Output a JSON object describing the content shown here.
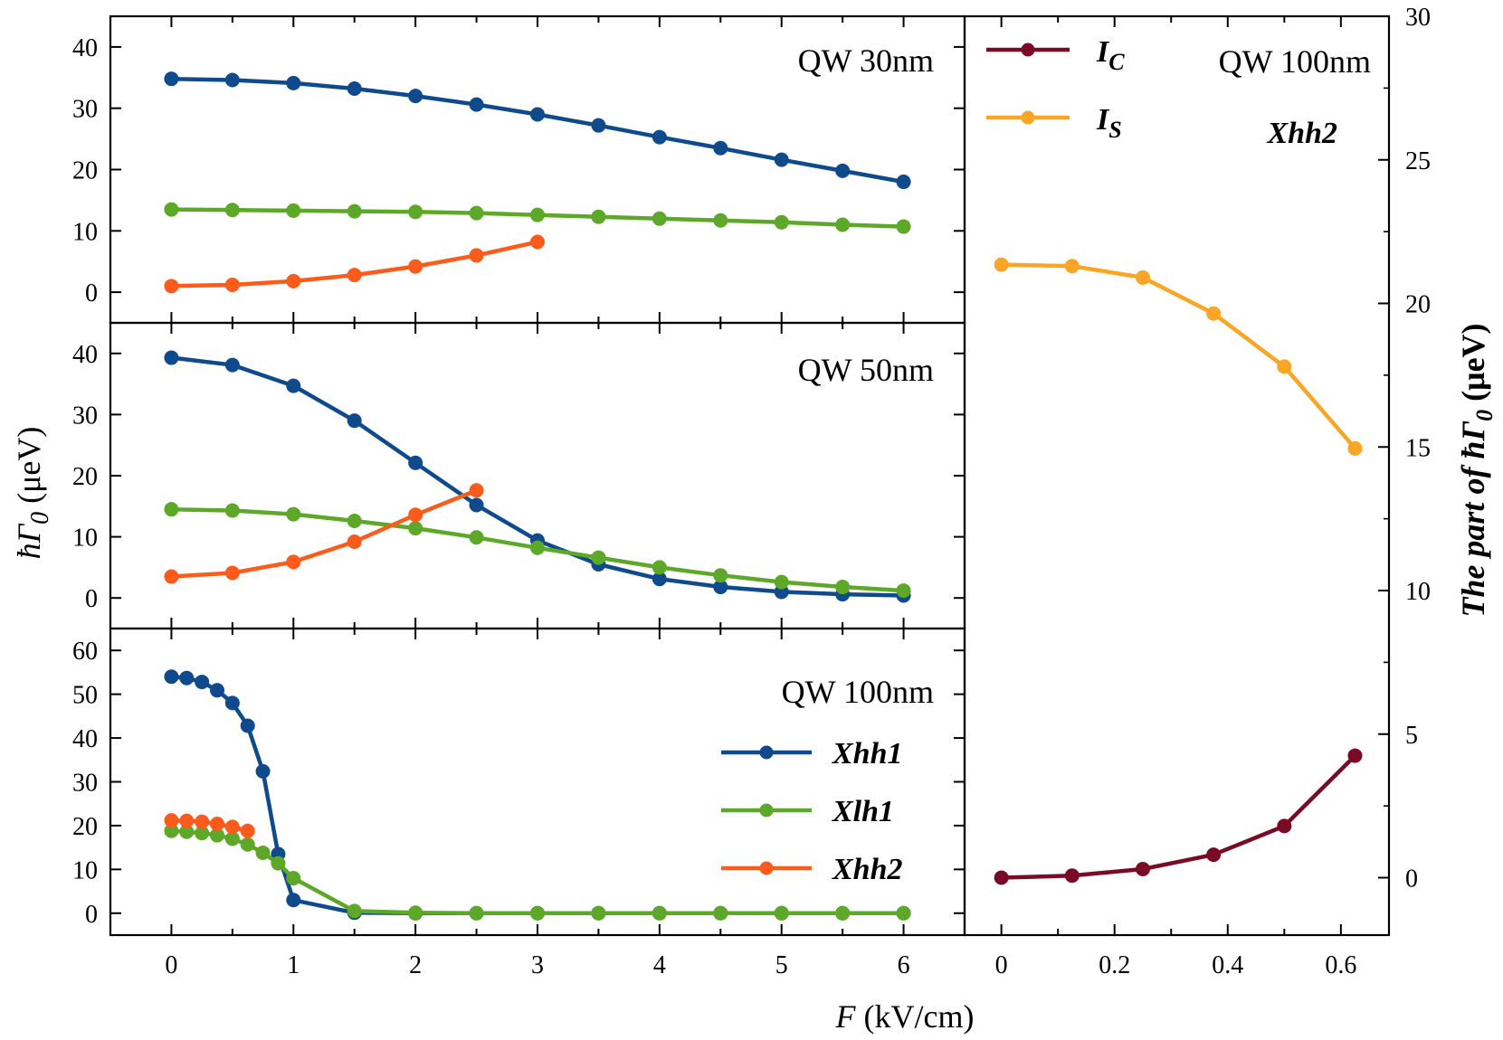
{
  "colors": {
    "Xhh1": "#0e4a8c",
    "Xlh1": "#5ea829",
    "Xhh2": "#fc5b1c",
    "I_C": "#7a0b27",
    "I_S": "#f9a526"
  },
  "xlabel": {
    "symbol": "F",
    "units": "(kV/cm)"
  },
  "ylabel_left": {
    "main": "ħΓ",
    "sub": "0",
    "units": "(μeV)"
  },
  "ylabel_right": {
    "prefix": "The part of ħΓ",
    "sub": "0",
    "units": "(μeV)"
  },
  "legend_left": [
    "Xhh1",
    "Xlh1",
    "Xhh2"
  ],
  "legend_right": [
    {
      "key": "I_C",
      "main": "I",
      "sub": "C"
    },
    {
      "key": "I_S",
      "main": "I",
      "sub": "S"
    }
  ],
  "chart_data": [
    {
      "type": "line",
      "panel": "left-top",
      "title": "QW 30nm",
      "xlim": [
        -0.5,
        6.5
      ],
      "ylim": [
        -5,
        45
      ],
      "yticks": [
        0,
        10,
        20,
        30,
        40
      ],
      "xticks": [
        0,
        1,
        2,
        3,
        4,
        5,
        6
      ],
      "series": [
        {
          "name": "Xhh1",
          "x": [
            0,
            0.5,
            1,
            1.5,
            2,
            2.5,
            3,
            3.5,
            4,
            4.5,
            5,
            5.5,
            6
          ],
          "y": [
            34.8,
            34.6,
            34.1,
            33.2,
            32.0,
            30.6,
            29.0,
            27.2,
            25.3,
            23.5,
            21.6,
            19.8,
            18.0
          ]
        },
        {
          "name": "Xlh1",
          "x": [
            0,
            0.5,
            1,
            1.5,
            2,
            2.5,
            3,
            3.5,
            4,
            4.5,
            5,
            5.5,
            6
          ],
          "y": [
            13.5,
            13.4,
            13.3,
            13.2,
            13.1,
            12.9,
            12.6,
            12.3,
            12.0,
            11.7,
            11.4,
            11.0,
            10.7
          ]
        },
        {
          "name": "Xhh2",
          "x": [
            0,
            0.5,
            1,
            1.5,
            2,
            2.5,
            3
          ],
          "y": [
            1.0,
            1.2,
            1.8,
            2.8,
            4.2,
            6.0,
            8.2
          ]
        }
      ]
    },
    {
      "type": "line",
      "panel": "left-middle",
      "title": "QW 50nm",
      "xlim": [
        -0.5,
        6.5
      ],
      "ylim": [
        -5,
        45
      ],
      "yticks": [
        0,
        10,
        20,
        30,
        40
      ],
      "xticks": [
        0,
        1,
        2,
        3,
        4,
        5,
        6
      ],
      "series": [
        {
          "name": "Xhh1",
          "x": [
            0,
            0.5,
            1,
            1.5,
            2,
            2.5,
            3,
            3.5,
            4,
            4.5,
            5,
            5.5,
            6
          ],
          "y": [
            39.3,
            38.1,
            34.7,
            29.0,
            22.1,
            15.2,
            9.4,
            5.5,
            3.1,
            1.8,
            1.0,
            0.6,
            0.4
          ]
        },
        {
          "name": "Xlh1",
          "x": [
            0,
            0.5,
            1,
            1.5,
            2,
            2.5,
            3,
            3.5,
            4,
            4.5,
            5,
            5.5,
            6
          ],
          "y": [
            14.5,
            14.3,
            13.7,
            12.6,
            11.4,
            9.9,
            8.2,
            6.6,
            5.0,
            3.7,
            2.6,
            1.8,
            1.2
          ]
        },
        {
          "name": "Xhh2",
          "x": [
            0,
            0.5,
            1,
            1.5,
            2,
            2.5
          ],
          "y": [
            3.5,
            4.1,
            5.9,
            9.2,
            13.6,
            17.6
          ]
        }
      ]
    },
    {
      "type": "line",
      "panel": "left-bottom",
      "title": "QW 100nm",
      "xlim": [
        -0.5,
        6.5
      ],
      "ylim": [
        -5,
        65
      ],
      "yticks": [
        0,
        10,
        20,
        30,
        40,
        50,
        60
      ],
      "xticks": [
        0,
        1,
        2,
        3,
        4,
        5,
        6
      ],
      "xticklabels": [
        "0",
        "1",
        "2",
        "3",
        "4",
        "5",
        "6"
      ],
      "series": [
        {
          "name": "Xhh1",
          "x": [
            0,
            0.125,
            0.25,
            0.375,
            0.5,
            0.625,
            0.75,
            0.875,
            1,
            1.5,
            2,
            2.5,
            3,
            3.5,
            4,
            4.5,
            5,
            5.5,
            6
          ],
          "y": [
            54.0,
            53.7,
            52.8,
            50.9,
            48.0,
            42.8,
            32.4,
            13.5,
            3.0,
            0.1,
            0.0,
            0.0,
            0.0,
            0.0,
            0.0,
            0.0,
            0.0,
            0.0,
            0.0
          ]
        },
        {
          "name": "Xlh1",
          "x": [
            0,
            0.125,
            0.25,
            0.375,
            0.5,
            0.625,
            0.75,
            0.875,
            1,
            1.5,
            2,
            2.5,
            3,
            3.5,
            4,
            4.5,
            5,
            5.5,
            6
          ],
          "y": [
            18.8,
            18.6,
            18.3,
            17.8,
            17.0,
            15.7,
            13.8,
            11.4,
            8.0,
            0.5,
            0.1,
            0.0,
            0.0,
            0.0,
            0.0,
            0.0,
            0.0,
            0.0,
            0.0
          ]
        },
        {
          "name": "Xhh2",
          "x": [
            0,
            0.125,
            0.25,
            0.375,
            0.5,
            0.625
          ],
          "y": [
            21.2,
            21.1,
            20.9,
            20.4,
            19.7,
            18.8
          ]
        }
      ]
    },
    {
      "type": "line",
      "panel": "right",
      "title": "QW 100nm",
      "annotation": "Xhh2",
      "xlim": [
        -0.065,
        0.685
      ],
      "ylim": [
        -2,
        30
      ],
      "yticks": [
        0,
        5,
        10,
        15,
        20,
        25,
        30
      ],
      "xticks": [
        0,
        0.2,
        0.4,
        0.6
      ],
      "xticklabels": [
        "0",
        "0.2",
        "0.4",
        "0.6"
      ],
      "series": [
        {
          "name": "I_C",
          "x": [
            0,
            0.125,
            0.25,
            0.375,
            0.5,
            0.625
          ],
          "y": [
            0.0,
            0.07,
            0.3,
            0.8,
            1.8,
            4.25
          ]
        },
        {
          "name": "I_S",
          "x": [
            0,
            0.125,
            0.25,
            0.375,
            0.5,
            0.625
          ],
          "y": [
            21.35,
            21.3,
            20.9,
            19.65,
            17.8,
            14.95
          ]
        }
      ]
    }
  ]
}
